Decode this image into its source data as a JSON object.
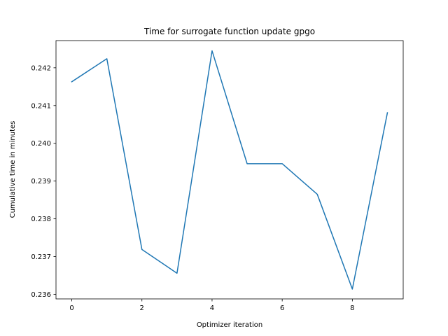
{
  "chart_data": {
    "type": "line",
    "title": "Time for surrogate function update gpgo",
    "xlabel": "Optimizer iteration",
    "ylabel": "Cumulative time in minutes",
    "xlim": [
      -0.45,
      9.45
    ],
    "ylim": [
      0.23588,
      0.24272
    ],
    "xticks": [
      0,
      2,
      4,
      6,
      8
    ],
    "yticks": [
      0.236,
      0.237,
      0.238,
      0.239,
      0.24,
      0.241,
      0.242
    ],
    "x": [
      0,
      1,
      2,
      3,
      4,
      5,
      6,
      7,
      8,
      9
    ],
    "series": [
      {
        "values": [
          0.24163,
          0.24224,
          0.23719,
          0.23656,
          0.24245,
          0.23946,
          0.23946,
          0.23865,
          0.23614,
          0.24081
        ],
        "color": "#1f77b4"
      }
    ],
    "grid": false,
    "legend": "none"
  }
}
